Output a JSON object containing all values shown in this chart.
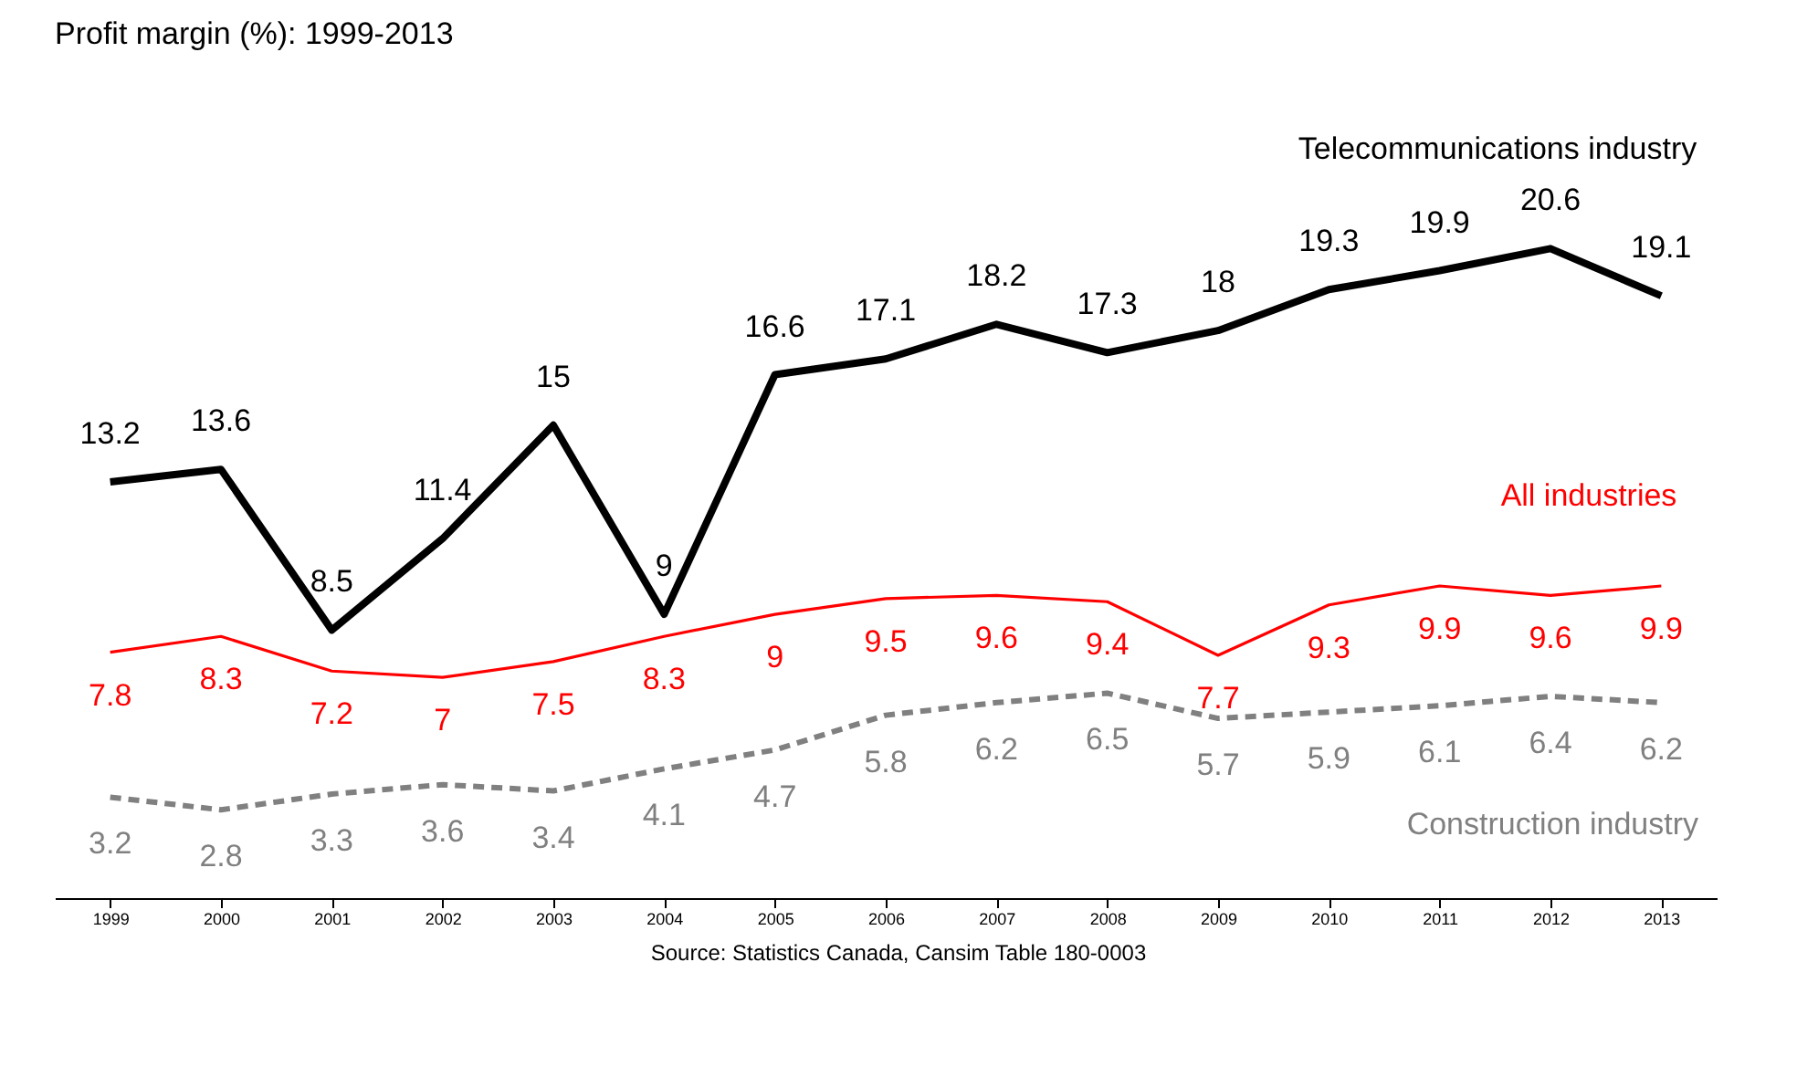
{
  "chart_data": {
    "type": "line",
    "title": "Profit margin (%):  1999-2013",
    "categories": [
      "1999",
      "2000",
      "2001",
      "2002",
      "2003",
      "2004",
      "2005",
      "2006",
      "2007",
      "2008",
      "2009",
      "2010",
      "2011",
      "2012",
      "2013"
    ],
    "series": [
      {
        "name": "Telecommunications industry",
        "color": "#000000",
        "line_style": "solid",
        "values": [
          13.2,
          13.6,
          8.5,
          11.4,
          15,
          9,
          16.6,
          17.1,
          18.2,
          17.3,
          18,
          19.3,
          19.9,
          20.6,
          19.1
        ]
      },
      {
        "name": "All industries",
        "color": "#ff0000",
        "line_style": "solid",
        "values": [
          7.8,
          8.3,
          7.2,
          7,
          7.5,
          8.3,
          9,
          9.5,
          9.6,
          9.4,
          7.7,
          9.3,
          9.9,
          9.6,
          9.9
        ]
      },
      {
        "name": "Construction industry",
        "color": "#808080",
        "line_style": "dashed",
        "values": [
          3.2,
          2.8,
          3.3,
          3.6,
          3.4,
          4.1,
          4.7,
          5.8,
          6.2,
          6.5,
          5.7,
          5.9,
          6.1,
          6.4,
          6.2
        ]
      }
    ],
    "data_labels": true,
    "legend": false,
    "grid": false,
    "annotations": [
      "Source: Statistics Canada, Cansim Table 180-0003"
    ]
  }
}
